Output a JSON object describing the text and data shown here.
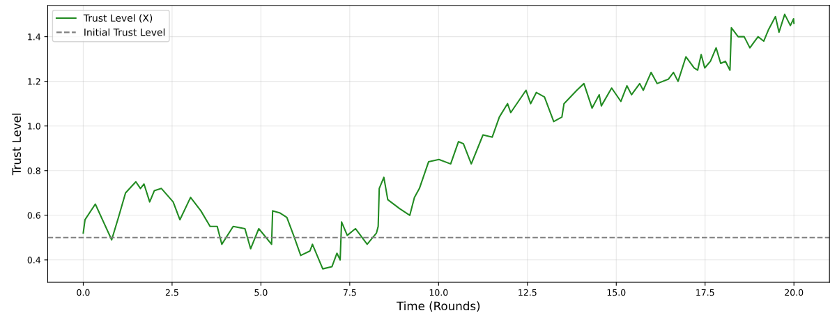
{
  "chart_data": {
    "type": "line",
    "xlabel": "Time (Rounds)",
    "ylabel": "Trust Level",
    "xlim": [
      -1,
      21
    ],
    "ylim": [
      0.3,
      1.54
    ],
    "xticks": [
      {
        "value": 0,
        "label": "0.0"
      },
      {
        "value": 2.5,
        "label": "2.5"
      },
      {
        "value": 5,
        "label": "5.0"
      },
      {
        "value": 7.5,
        "label": "7.5"
      },
      {
        "value": 10,
        "label": "10.0"
      },
      {
        "value": 12.5,
        "label": "12.5"
      },
      {
        "value": 15,
        "label": "15.0"
      },
      {
        "value": 17.5,
        "label": "17.5"
      },
      {
        "value": 20,
        "label": "20.0"
      }
    ],
    "yticks": [
      {
        "value": 0.4,
        "label": "0.4"
      },
      {
        "value": 0.6,
        "label": "0.6"
      },
      {
        "value": 0.8,
        "label": "0.8"
      },
      {
        "value": 1.0,
        "label": "1.0"
      },
      {
        "value": 1.2,
        "label": "1.2"
      },
      {
        "value": 1.4,
        "label": "1.4"
      }
    ],
    "grid": true,
    "legend": "top left",
    "line_style": "solid",
    "marker": "none",
    "series": [
      {
        "name": "Trust Level (X)",
        "color": "#228b22",
        "x": [
          0,
          0.05,
          0.34,
          0.57,
          0.8,
          0.99,
          1.19,
          1.48,
          1.61,
          1.71,
          1.87,
          2.0,
          2.2,
          2.53,
          2.72,
          3.02,
          3.31,
          3.57,
          3.77,
          3.9,
          4.22,
          4.55,
          4.71,
          4.94,
          5.3,
          5.33,
          5.54,
          5.73,
          5.92,
          6.12,
          6.38,
          6.45,
          6.74,
          7.0,
          7.14,
          7.23,
          7.27,
          7.43,
          7.66,
          7.99,
          8.25,
          8.3,
          8.33,
          8.46,
          8.57,
          8.9,
          9.19,
          9.32,
          9.46,
          9.72,
          10.01,
          10.34,
          10.56,
          10.7,
          10.92,
          11.25,
          11.51,
          11.71,
          11.94,
          12.03,
          12.46,
          12.59,
          12.75,
          12.98,
          13.24,
          13.47,
          13.53,
          13.89,
          14.09,
          14.32,
          14.52,
          14.58,
          14.87,
          15.13,
          15.3,
          15.43,
          15.66,
          15.76,
          15.98,
          16.15,
          16.47,
          16.61,
          16.74,
          16.96,
          17.19,
          17.29,
          17.39,
          17.49,
          17.65,
          17.81,
          17.94,
          18.07,
          18.2,
          18.24,
          18.43,
          18.6,
          18.76,
          18.99,
          19.15,
          19.28,
          19.48,
          19.58,
          19.74,
          19.9,
          19.99,
          20.0
        ],
        "values": [
          0.52,
          0.58,
          0.65,
          0.57,
          0.49,
          0.59,
          0.7,
          0.75,
          0.72,
          0.74,
          0.66,
          0.71,
          0.72,
          0.66,
          0.58,
          0.68,
          0.62,
          0.55,
          0.55,
          0.47,
          0.55,
          0.54,
          0.45,
          0.54,
          0.47,
          0.62,
          0.61,
          0.59,
          0.51,
          0.42,
          0.44,
          0.47,
          0.36,
          0.37,
          0.43,
          0.4,
          0.57,
          0.51,
          0.54,
          0.47,
          0.52,
          0.55,
          0.72,
          0.77,
          0.67,
          0.63,
          0.6,
          0.68,
          0.72,
          0.84,
          0.85,
          0.83,
          0.93,
          0.92,
          0.83,
          0.96,
          0.95,
          1.04,
          1.1,
          1.06,
          1.16,
          1.1,
          1.15,
          1.13,
          1.02,
          1.04,
          1.1,
          1.16,
          1.19,
          1.08,
          1.14,
          1.09,
          1.17,
          1.11,
          1.18,
          1.14,
          1.19,
          1.16,
          1.24,
          1.19,
          1.21,
          1.24,
          1.2,
          1.31,
          1.26,
          1.25,
          1.32,
          1.26,
          1.29,
          1.35,
          1.28,
          1.29,
          1.25,
          1.44,
          1.4,
          1.4,
          1.35,
          1.4,
          1.38,
          1.43,
          1.49,
          1.42,
          1.5,
          1.45,
          1.48,
          1.46
        ]
      }
    ],
    "ref_lines": [
      {
        "axis": "y",
        "value": 0.5,
        "label": "Initial Trust Level",
        "color": "#808080",
        "line_style": "dashed"
      }
    ]
  }
}
